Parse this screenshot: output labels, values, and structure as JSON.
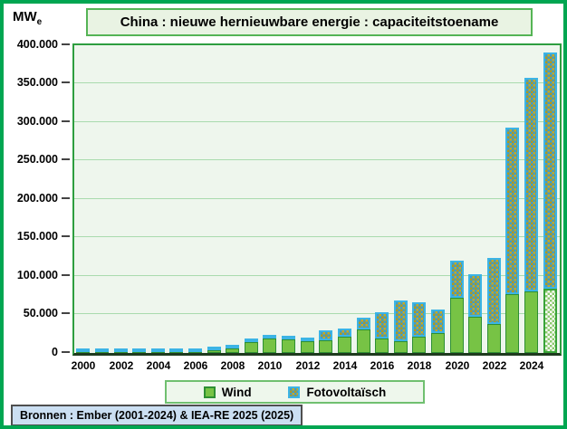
{
  "title": "China : nieuwe hernieuwbare energie : capaciteitstoename",
  "y_unit": {
    "main": "MW",
    "sub": "e"
  },
  "legend": {
    "wind": "Wind",
    "pv": "Fotovoltaïsch"
  },
  "source": "Bronnen : Ember (2001-2024) & IEA-RE 2025 (2025)",
  "colors": {
    "frame_green": "#00a651",
    "wind_green": "#77c345",
    "wind_border": "#2e8f33",
    "pv_gold": "#c9aa20",
    "pv_blue": "#3f9cc9",
    "pv_border": "#3cb4e5",
    "forecast_checker": "#8cc96d",
    "plot_background": "#eef6ed",
    "gridline": "#a9dbae",
    "source_background": "#cbdff2",
    "title_background": "#e9f3e3"
  },
  "chart_data": {
    "type": "bar",
    "stacked": true,
    "title": "China : nieuwe hernieuwbare energie : capaciteitstoename",
    "ylabel": "MWe",
    "xlabel": "",
    "ylim": [
      0,
      400000
    ],
    "ytick_step": 50000,
    "grid": true,
    "legend_position": "bottom",
    "forecast_year": 2025,
    "x": [
      2000,
      2001,
      2002,
      2003,
      2004,
      2005,
      2006,
      2007,
      2008,
      2009,
      2010,
      2011,
      2012,
      2013,
      2014,
      2015,
      2016,
      2017,
      2018,
      2019,
      2020,
      2021,
      2022,
      2023,
      2024,
      2025
    ],
    "series": [
      {
        "name": "Wind",
        "values": [
          80,
          130,
          180,
          100,
          200,
          500,
          1290,
          3310,
          6150,
          13800,
          18930,
          17630,
          15440,
          16090,
          20880,
          30750,
          19330,
          15250,
          21140,
          25740,
          71670,
          47570,
          37630,
          75900,
          79800,
          83000
        ]
      },
      {
        "name": "Fotovoltaïsch",
        "values": [
          0,
          0,
          0,
          0,
          0,
          0,
          10,
          20,
          40,
          160,
          500,
          2100,
          3510,
          12920,
          10560,
          15130,
          34540,
          53060,
          44260,
          30110,
          48200,
          54880,
          86050,
          216880,
          277170,
          307000
        ]
      }
    ],
    "ytick_labels": [
      "0",
      "50.000",
      "100.000",
      "150.000",
      "200.000",
      "250.000",
      "300.000",
      "350.000",
      "400.000"
    ],
    "xtick_labels": [
      "2000",
      "2002",
      "2004",
      "2006",
      "2008",
      "2010",
      "2012",
      "2014",
      "2016",
      "2018",
      "2020",
      "2022",
      "2024"
    ]
  }
}
